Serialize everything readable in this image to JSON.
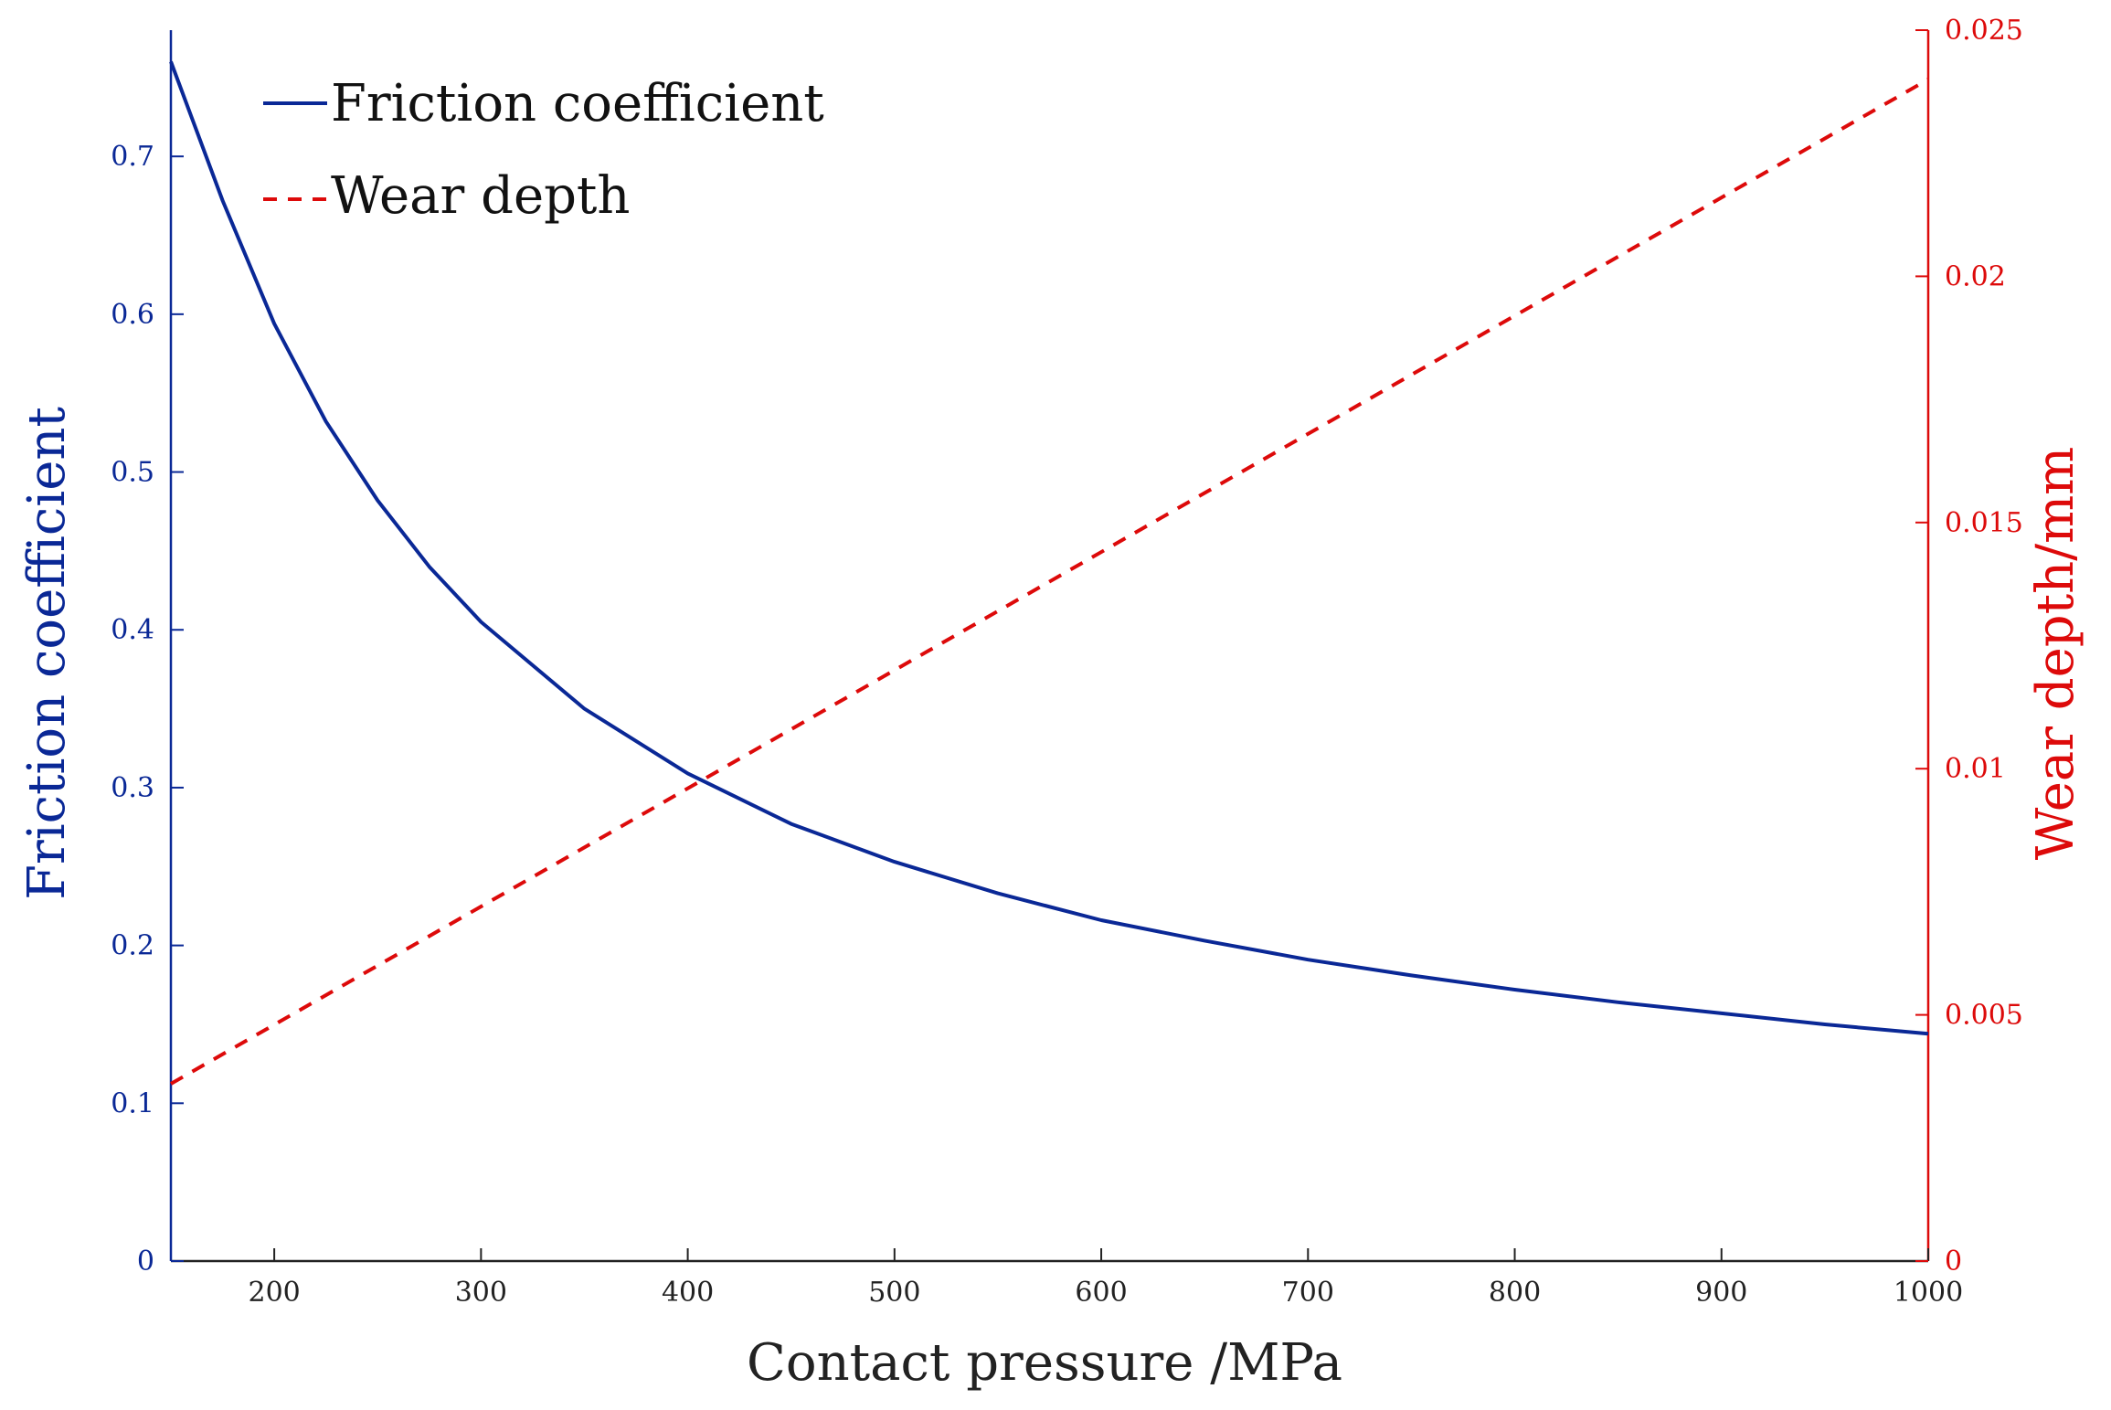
{
  "chart_data": {
    "type": "line",
    "title": "",
    "xlabel": "Contact pressure /MPa",
    "ylabel_left": "Friction coefficient",
    "ylabel_right": "Wear depth/mm",
    "xlim": [
      150,
      1000
    ],
    "ylim_left": [
      0,
      0.78
    ],
    "ylim_right": [
      0,
      0.025
    ],
    "x_ticks": [
      200,
      300,
      400,
      500,
      600,
      700,
      800,
      900,
      1000
    ],
    "x_tick_labels": [
      "200",
      "300",
      "400",
      "500",
      "600",
      "700",
      "800",
      "900",
      "1000"
    ],
    "y_left_ticks": [
      0,
      0.1,
      0.2,
      0.3,
      0.4,
      0.5,
      0.6,
      0.7
    ],
    "y_left_tick_labels": [
      "0",
      "0.1",
      "0.2",
      "0.3",
      "0.4",
      "0.5",
      "0.6",
      "0.7"
    ],
    "y_right_ticks": [
      0,
      0.005,
      0.01,
      0.015,
      0.02,
      0.025
    ],
    "y_right_tick_labels": [
      "0",
      "0.005",
      "0.01",
      "0.015",
      "0.02",
      "0.025"
    ],
    "grid": false,
    "legend_position": "top-left",
    "colors": {
      "friction": "#0a2896",
      "wear": "#dd0a0a",
      "axis": "#222222"
    },
    "series": [
      {
        "name": "Friction coefficient",
        "axis": "left",
        "style": "solid",
        "x": [
          150,
          175,
          200,
          225,
          250,
          275,
          300,
          350,
          400,
          450,
          500,
          550,
          600,
          650,
          700,
          750,
          800,
          850,
          900,
          950,
          1000
        ],
        "values": [
          0.76,
          0.672,
          0.594,
          0.532,
          0.482,
          0.44,
          0.405,
          0.35,
          0.309,
          0.277,
          0.253,
          0.233,
          0.216,
          0.203,
          0.191,
          0.181,
          0.172,
          0.164,
          0.157,
          0.15,
          0.144
        ]
      },
      {
        "name": "Wear depth",
        "axis": "right",
        "style": "dashed",
        "x": [
          150,
          1000
        ],
        "values": [
          0.0036,
          0.024
        ]
      }
    ]
  }
}
